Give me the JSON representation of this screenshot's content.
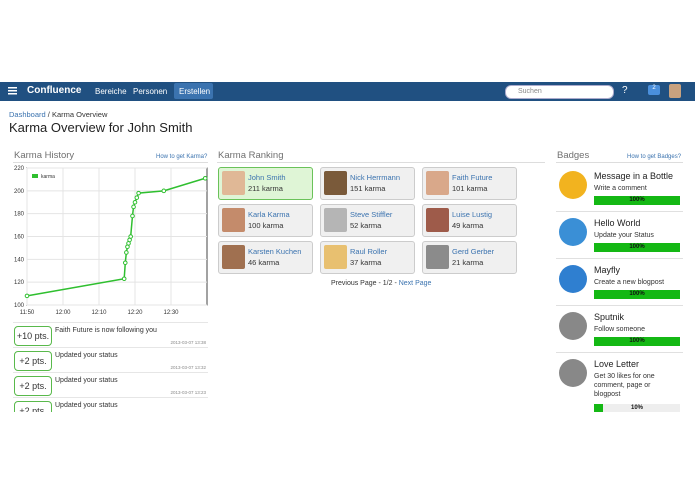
{
  "nav": {
    "logo": "Confluence",
    "items": [
      "Bereiche",
      "Personen"
    ],
    "create": "Erstellen",
    "search_placeholder": "Suchen",
    "notifications": "2"
  },
  "breadcrumb": [
    "Dashboard",
    "Karma Overview"
  ],
  "title": "Karma Overview for John Smith",
  "karma_history": {
    "heading": "Karma History",
    "link": "How to get Karma?",
    "chart": {
      "type": "line",
      "xlim": [
        710,
        760
      ],
      "xticks": [
        {
          "value": 710,
          "label": "11:50"
        },
        {
          "value": 720,
          "label": "12:00"
        },
        {
          "value": 730,
          "label": "12:10"
        },
        {
          "value": 740,
          "label": "12:20"
        },
        {
          "value": 750,
          "label": "12:30"
        }
      ],
      "ylim": [
        100,
        220
      ],
      "yticks": [
        100,
        120,
        140,
        160,
        180,
        200,
        220
      ],
      "grid": true,
      "series": [
        {
          "name": "karma",
          "color": "#2fbf2f",
          "x": [
            710,
            737,
            737.3,
            737.6,
            737.9,
            738.2,
            738.5,
            738.8,
            739.3,
            739.6,
            740,
            740.5,
            741,
            748,
            759.5
          ],
          "values": [
            108,
            123,
            137,
            146,
            151,
            154,
            157,
            160,
            178,
            186,
            190,
            194,
            198,
            200,
            211
          ]
        }
      ]
    },
    "activity": [
      {
        "points": "+10 pts.",
        "text": "Faith Future is now following you",
        "date": "2013-03-07 13:38"
      },
      {
        "points": "+2 pts.",
        "text": "Updated your status",
        "date": "2013-03-07 13:32"
      },
      {
        "points": "+2 pts.",
        "text": "Updated your status",
        "date": "2013-03-07 13:23"
      },
      {
        "points": "+2 pts.",
        "text": "Updated your status"
      }
    ]
  },
  "ranking": {
    "heading": "Karma Ranking",
    "users": [
      {
        "name": "John Smith",
        "karma": "211 karma"
      },
      {
        "name": "Nick Herrmann",
        "karma": "151 karma"
      },
      {
        "name": "Faith Future",
        "karma": "101 karma"
      },
      {
        "name": "Karla Karma",
        "karma": "100 karma"
      },
      {
        "name": "Steve Stiffler",
        "karma": "52 karma"
      },
      {
        "name": "Luise Lustig",
        "karma": "49 karma"
      },
      {
        "name": "Karsten Kuchen",
        "karma": "46 karma"
      },
      {
        "name": "Raul Roller",
        "karma": "37 karma"
      },
      {
        "name": "Gerd Gerber",
        "karma": "21 karma"
      }
    ],
    "pagination": {
      "previous": "Previous Page",
      "pages": "1/2",
      "next": "Next Page"
    }
  },
  "badges": {
    "heading": "Badges",
    "link": "How to get Badges?",
    "items": [
      {
        "title": "Message in a Bottle",
        "description": "Write a comment",
        "progress": {
          "value": 100,
          "label": "100%"
        }
      },
      {
        "title": "Hello World",
        "description": "Update your Status",
        "progress": {
          "value": 100,
          "label": "100%"
        }
      },
      {
        "title": "Mayfly",
        "description": "Create a new blogpost",
        "progress": {
          "value": 100,
          "label": "100%"
        }
      },
      {
        "title": "Sputnik",
        "description": "Follow someone",
        "progress": {
          "value": 100,
          "label": "100%"
        }
      },
      {
        "title": "Love Letter",
        "description": "Get 30 likes for one comment, page or blogpost",
        "progress": {
          "value": 10,
          "label": "10%"
        }
      }
    ]
  }
}
